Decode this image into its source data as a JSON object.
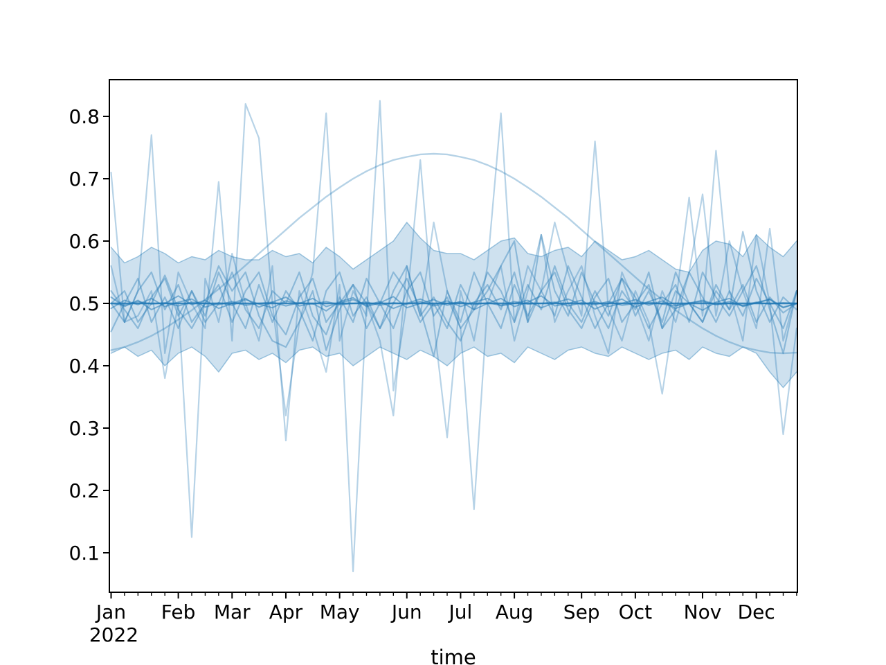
{
  "style": {
    "line_color": "#1f77b4",
    "band_fill_color": "#1f77b4",
    "band_fill_opacity": 0.22,
    "axis_color": "#000000",
    "background_color": "#ffffff"
  },
  "axes": {
    "xlabel": "time",
    "ylabel": "",
    "x_offset_label": "2022",
    "x_tick_labels": [
      "Jan",
      "Feb",
      "Mar",
      "Apr",
      "May",
      "Jun",
      "Jul",
      "Aug",
      "Sep",
      "Oct",
      "Nov",
      "Dec"
    ],
    "y_tick_labels": [
      "0.1",
      "0.2",
      "0.3",
      "0.4",
      "0.5",
      "0.6",
      "0.7",
      "0.8"
    ]
  },
  "chart_data": {
    "type": "line",
    "title": "",
    "xlabel": "time",
    "ylabel": "",
    "legend": false,
    "grid": false,
    "x_unit": "week index of 2022 (weekly samples)",
    "xlim_weeks": [
      0,
      51
    ],
    "ylim": [
      0.037,
      0.859
    ],
    "y_ticks": [
      0.1,
      0.2,
      0.3,
      0.4,
      0.5,
      0.6,
      0.7,
      0.8
    ],
    "month_ticks": {
      "labels": [
        "Jan",
        "Feb",
        "Mar",
        "Apr",
        "May",
        "Jun",
        "Jul",
        "Aug",
        "Sep",
        "Oct",
        "Nov",
        "Dec"
      ],
      "week_positions": [
        0,
        5,
        9,
        13,
        17,
        22,
        26,
        30,
        35,
        39,
        44,
        48
      ],
      "year_label": "2022"
    },
    "x": [
      0,
      1,
      2,
      3,
      4,
      5,
      6,
      7,
      8,
      9,
      10,
      11,
      12,
      13,
      14,
      15,
      16,
      17,
      18,
      19,
      20,
      21,
      22,
      23,
      24,
      25,
      26,
      27,
      28,
      29,
      30,
      31,
      32,
      33,
      34,
      35,
      36,
      37,
      38,
      39,
      40,
      41,
      42,
      43,
      44,
      45,
      46,
      47,
      48,
      49,
      50,
      51
    ],
    "band": {
      "upper": [
        0.59,
        0.565,
        0.575,
        0.59,
        0.58,
        0.565,
        0.575,
        0.57,
        0.585,
        0.575,
        0.57,
        0.57,
        0.585,
        0.575,
        0.58,
        0.565,
        0.59,
        0.575,
        0.555,
        0.57,
        0.585,
        0.6,
        0.63,
        0.605,
        0.585,
        0.58,
        0.58,
        0.57,
        0.585,
        0.6,
        0.605,
        0.58,
        0.575,
        0.585,
        0.59,
        0.575,
        0.6,
        0.585,
        0.57,
        0.575,
        0.585,
        0.57,
        0.555,
        0.55,
        0.585,
        0.6,
        0.595,
        0.575,
        0.61,
        0.59,
        0.575,
        0.6
      ],
      "lower": [
        0.42,
        0.43,
        0.415,
        0.425,
        0.4,
        0.42,
        0.43,
        0.415,
        0.39,
        0.42,
        0.425,
        0.41,
        0.42,
        0.405,
        0.425,
        0.43,
        0.415,
        0.42,
        0.4,
        0.415,
        0.43,
        0.42,
        0.41,
        0.425,
        0.415,
        0.4,
        0.42,
        0.43,
        0.415,
        0.42,
        0.405,
        0.43,
        0.42,
        0.41,
        0.425,
        0.43,
        0.42,
        0.415,
        0.43,
        0.42,
        0.41,
        0.42,
        0.425,
        0.41,
        0.43,
        0.42,
        0.415,
        0.43,
        0.42,
        0.39,
        0.365,
        0.39
      ]
    },
    "series": [
      {
        "name": "sample-high-1",
        "role": "sample-high",
        "values": [
          0.71,
          0.47,
          0.52,
          0.77,
          0.42,
          0.55,
          0.5,
          0.46,
          0.695,
          0.44,
          0.82,
          0.765,
          0.5,
          0.32,
          0.47,
          0.55,
          0.805,
          0.44,
          0.52,
          0.48,
          0.825,
          0.36,
          0.5,
          0.73,
          0.47,
          0.285,
          0.52,
          0.44,
          0.56,
          0.805,
          0.47,
          0.56,
          0.52,
          0.63,
          0.55,
          0.48,
          0.76,
          0.49,
          0.44,
          0.52,
          0.47,
          0.355,
          0.5,
          0.67,
          0.48,
          0.745,
          0.52,
          0.44,
          0.61,
          0.5,
          0.29,
          0.46
        ]
      },
      {
        "name": "sample-high-2",
        "role": "sample-high",
        "values": [
          0.56,
          0.47,
          0.48,
          0.52,
          0.38,
          0.5,
          0.125,
          0.54,
          0.47,
          0.58,
          0.5,
          0.44,
          0.56,
          0.28,
          0.52,
          0.46,
          0.39,
          0.53,
          0.07,
          0.5,
          0.44,
          0.32,
          0.56,
          0.48,
          0.63,
          0.52,
          0.46,
          0.17,
          0.5,
          0.56,
          0.44,
          0.52,
          0.61,
          0.47,
          0.52,
          0.56,
          0.48,
          0.42,
          0.55,
          0.5,
          0.44,
          0.52,
          0.47,
          0.55,
          0.675,
          0.48,
          0.6,
          0.52,
          0.46,
          0.62,
          0.44,
          0.52
        ]
      },
      {
        "name": "sample-mid-1",
        "role": "sample-mid",
        "values": [
          0.5,
          0.52,
          0.47,
          0.5,
          0.545,
          0.49,
          0.46,
          0.5,
          0.53,
          0.47,
          0.52,
          0.55,
          0.48,
          0.45,
          0.51,
          0.54,
          0.47,
          0.5,
          0.53,
          0.46,
          0.5,
          0.55,
          0.52,
          0.47,
          0.5,
          0.46,
          0.53,
          0.49,
          0.52,
          0.56,
          0.6,
          0.47,
          0.61,
          0.52,
          0.48,
          0.55,
          0.5,
          0.46,
          0.52,
          0.49,
          0.55,
          0.46,
          0.52,
          0.5,
          0.47,
          0.53,
          0.49,
          0.615,
          0.52,
          0.47,
          0.51,
          0.49
        ]
      },
      {
        "name": "sample-mid-2",
        "role": "sample-mid",
        "values": [
          0.455,
          0.5,
          0.54,
          0.47,
          0.51,
          0.46,
          0.52,
          0.48,
          0.55,
          0.5,
          0.46,
          0.53,
          0.47,
          0.52,
          0.49,
          0.44,
          0.52,
          0.55,
          0.48,
          0.51,
          0.46,
          0.5,
          0.54,
          0.49,
          0.415,
          0.52,
          0.47,
          0.55,
          0.5,
          0.46,
          0.53,
          0.48,
          0.52,
          0.55,
          0.49,
          0.46,
          0.51,
          0.54,
          0.47,
          0.5,
          0.53,
          0.46,
          0.49,
          0.55,
          0.51,
          0.47,
          0.52,
          0.48,
          0.54,
          0.5,
          0.46,
          0.52
        ]
      },
      {
        "name": "sample-mid-3",
        "role": "sample-mid",
        "values": [
          0.5,
          0.47,
          0.52,
          0.55,
          0.49,
          0.53,
          0.47,
          0.5,
          0.56,
          0.52,
          0.55,
          0.48,
          0.44,
          0.43,
          0.47,
          0.52,
          0.425,
          0.49,
          0.53,
          0.5,
          0.46,
          0.52,
          0.56,
          0.48,
          0.51,
          0.47,
          0.44,
          0.5,
          0.53,
          0.49,
          0.55,
          0.47,
          0.52,
          0.48,
          0.56,
          0.51,
          0.46,
          0.5,
          0.54,
          0.48,
          0.52,
          0.47,
          0.55,
          0.5,
          0.47,
          0.52,
          0.49,
          0.53,
          0.47,
          0.51,
          0.485,
          0.5
        ]
      },
      {
        "name": "sample-mid-4",
        "role": "sample-mid",
        "values": [
          0.52,
          0.49,
          0.46,
          0.51,
          0.54,
          0.48,
          0.52,
          0.47,
          0.5,
          0.55,
          0.49,
          0.46,
          0.52,
          0.5,
          0.55,
          0.48,
          0.45,
          0.51,
          0.47,
          0.54,
          0.5,
          0.46,
          0.52,
          0.55,
          0.48,
          0.51,
          0.46,
          0.49,
          0.55,
          0.52,
          0.47,
          0.53,
          0.49,
          0.56,
          0.5,
          0.47,
          0.52,
          0.48,
          0.54,
          0.51,
          0.46,
          0.5,
          0.53,
          0.47,
          0.55,
          0.51,
          0.48,
          0.52,
          0.56,
          0.49,
          0.42,
          0.52
        ]
      },
      {
        "name": "sample-low-1",
        "role": "sample-low",
        "values": [
          0.5,
          0.497,
          0.503,
          0.499,
          0.501,
          0.496,
          0.502,
          0.5,
          0.498,
          0.503,
          0.497,
          0.5,
          0.502,
          0.496,
          0.501,
          0.499,
          0.503,
          0.498,
          0.5,
          0.502,
          0.497,
          0.501,
          0.499,
          0.503,
          0.496,
          0.5,
          0.502,
          0.498,
          0.501,
          0.497,
          0.503,
          0.499,
          0.5,
          0.502,
          0.496,
          0.501,
          0.498,
          0.503,
          0.497,
          0.5,
          0.502,
          0.499,
          0.496,
          0.501,
          0.503,
          0.498,
          0.5,
          0.497,
          0.502,
          0.499,
          0.501,
          0.5
        ]
      },
      {
        "name": "sample-low-2",
        "role": "sample-low",
        "values": [
          0.492,
          0.505,
          0.498,
          0.508,
          0.495,
          0.502,
          0.507,
          0.494,
          0.501,
          0.497,
          0.506,
          0.499,
          0.493,
          0.504,
          0.5,
          0.508,
          0.495,
          0.501,
          0.506,
          0.497,
          0.503,
          0.492,
          0.5,
          0.507,
          0.498,
          0.504,
          0.495,
          0.502,
          0.508,
          0.496,
          0.5,
          0.505,
          0.493,
          0.501,
          0.507,
          0.498,
          0.503,
          0.495,
          0.5,
          0.506,
          0.497,
          0.504,
          0.492,
          0.5,
          0.505,
          0.498,
          0.503,
          0.496,
          0.501,
          0.507,
          0.494,
          0.5
        ]
      },
      {
        "name": "sample-low-3",
        "role": "sample-low",
        "values": [
          0.51,
          0.495,
          0.505,
          0.49,
          0.5,
          0.512,
          0.498,
          0.505,
          0.492,
          0.5,
          0.508,
          0.494,
          0.502,
          0.51,
          0.496,
          0.5,
          0.488,
          0.503,
          0.509,
          0.495,
          0.501,
          0.511,
          0.493,
          0.5,
          0.506,
          0.497,
          0.503,
          0.49,
          0.5,
          0.508,
          0.495,
          0.502,
          0.512,
          0.496,
          0.5,
          0.505,
          0.491,
          0.5,
          0.507,
          0.494,
          0.503,
          0.51,
          0.497,
          0.5,
          0.489,
          0.502,
          0.508,
          0.495,
          0.501,
          0.506,
          0.493,
          0.5
        ]
      },
      {
        "name": "seasonal-smooth",
        "role": "seasonal",
        "values": [
          0.425,
          0.43,
          0.438,
          0.448,
          0.46,
          0.474,
          0.489,
          0.506,
          0.523,
          0.542,
          0.561,
          0.58,
          0.599,
          0.618,
          0.637,
          0.654,
          0.671,
          0.686,
          0.7,
          0.712,
          0.722,
          0.73,
          0.735,
          0.739,
          0.74,
          0.739,
          0.735,
          0.73,
          0.722,
          0.712,
          0.7,
          0.686,
          0.671,
          0.654,
          0.637,
          0.618,
          0.599,
          0.58,
          0.561,
          0.542,
          0.523,
          0.506,
          0.489,
          0.474,
          0.46,
          0.448,
          0.438,
          0.43,
          0.425,
          0.421,
          0.42,
          0.421
        ]
      },
      {
        "name": "ensemble-mean",
        "role": "mean",
        "values": [
          0.5,
          0.5,
          0.5,
          0.5,
          0.5,
          0.5,
          0.5,
          0.5,
          0.5,
          0.5,
          0.5,
          0.5,
          0.5,
          0.5,
          0.5,
          0.5,
          0.5,
          0.5,
          0.5,
          0.5,
          0.5,
          0.5,
          0.5,
          0.5,
          0.5,
          0.5,
          0.5,
          0.5,
          0.5,
          0.5,
          0.5,
          0.5,
          0.5,
          0.5,
          0.5,
          0.5,
          0.5,
          0.5,
          0.5,
          0.5,
          0.5,
          0.5,
          0.5,
          0.5,
          0.5,
          0.5,
          0.5,
          0.5,
          0.5,
          0.5,
          0.5,
          0.5
        ]
      }
    ]
  }
}
